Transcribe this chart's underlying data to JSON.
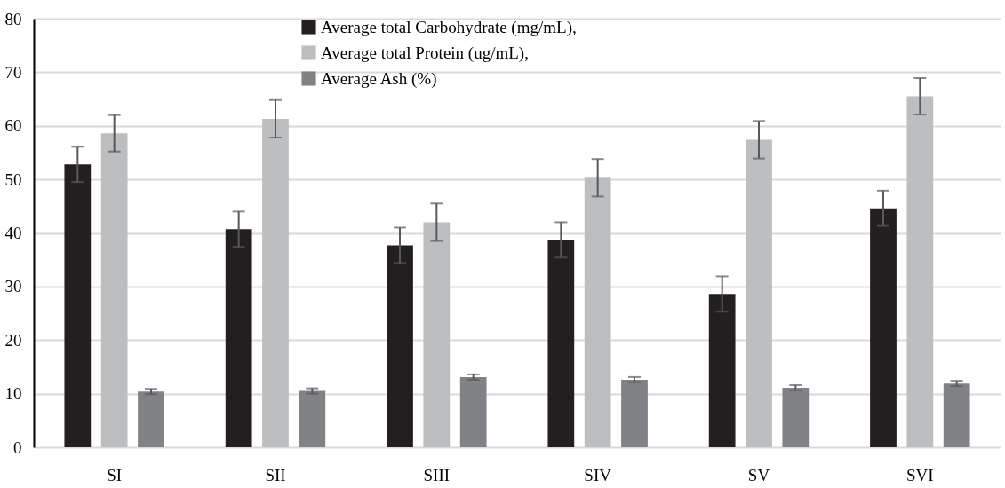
{
  "chart_data": {
    "type": "bar",
    "categories": [
      "SI",
      "SII",
      "SIII",
      "SIV",
      "SV",
      "SVI"
    ],
    "series": [
      {
        "name": "Average total Carbohydrate (mg/mL),",
        "color": "#231f20",
        "values": [
          52.8,
          40.7,
          37.7,
          38.7,
          28.6,
          44.6
        ],
        "errors": [
          3.3,
          3.3,
          3.3,
          3.3,
          3.3,
          3.3
        ]
      },
      {
        "name": "Average total Protein (ug/mL),",
        "color": "#bcbec0",
        "values": [
          58.6,
          61.3,
          42.0,
          50.3,
          57.4,
          65.5
        ],
        "errors": [
          3.4,
          3.5,
          3.5,
          3.5,
          3.5,
          3.4
        ]
      },
      {
        "name": "Average Ash (%)",
        "color": "#808285",
        "values": [
          10.4,
          10.5,
          13.1,
          12.6,
          11.1,
          11.9
        ],
        "errors": [
          0.5,
          0.5,
          0.5,
          0.5,
          0.5,
          0.5
        ]
      }
    ],
    "ylim": [
      0,
      80
    ],
    "yticks": [
      0,
      10,
      20,
      30,
      40,
      50,
      60,
      70,
      80
    ],
    "grid": "y",
    "legend": "top"
  }
}
